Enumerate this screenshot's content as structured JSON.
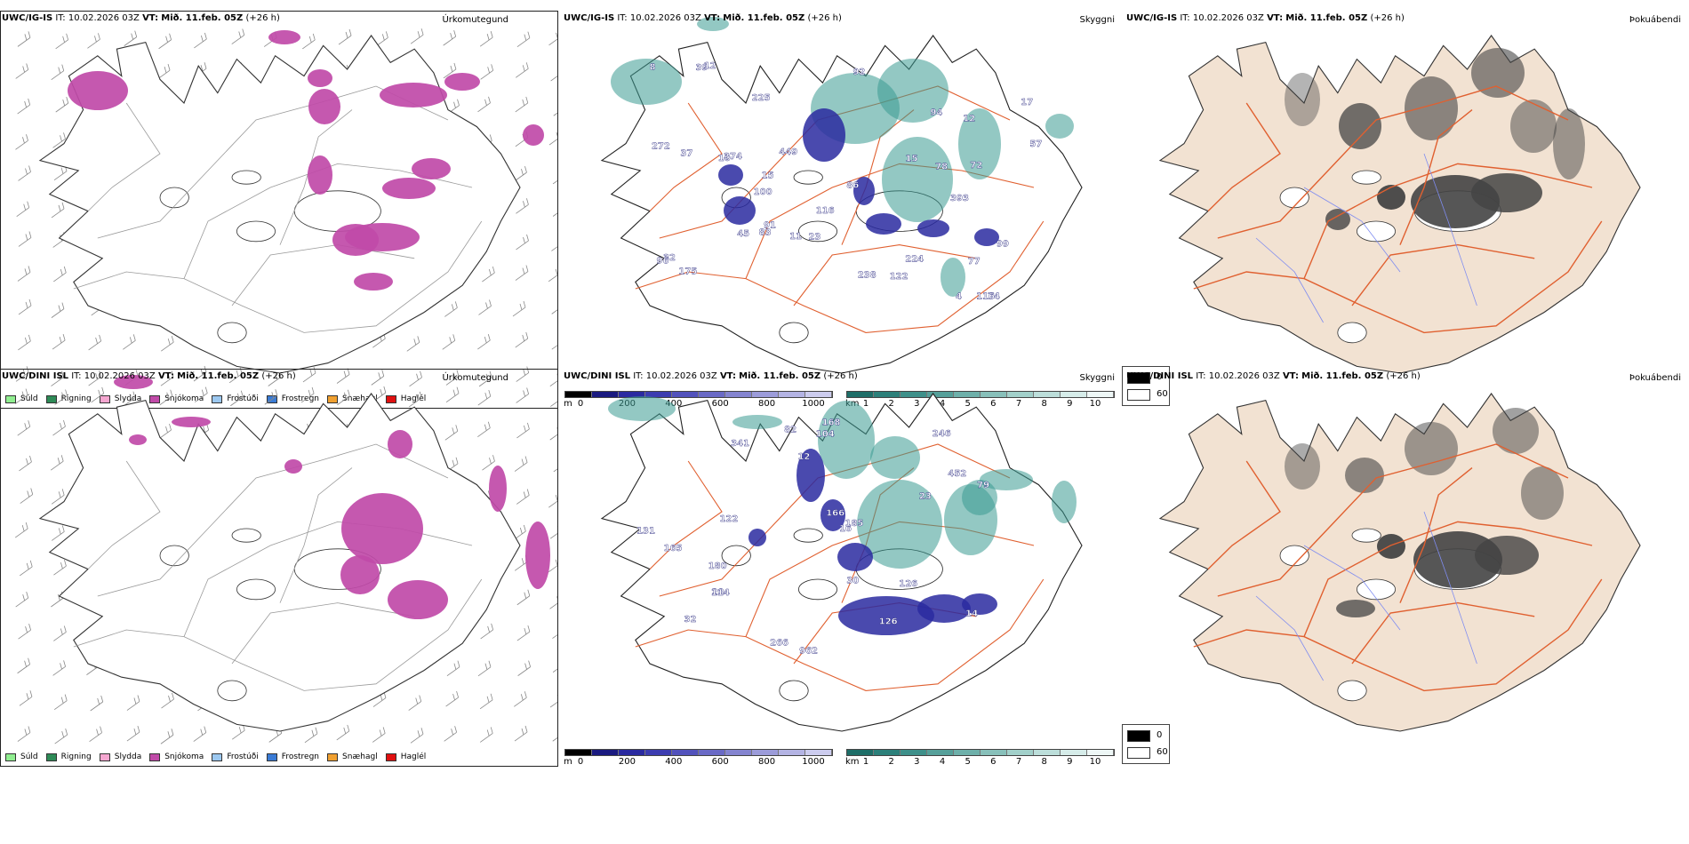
{
  "rows": [
    {
      "model": "UWC/IG-IS",
      "it_label": "IT:",
      "it_value": "10.02.2026 03Z",
      "vt_label": "VT:",
      "vt_value": "Mið. 11.feb. 05Z",
      "offset": "(+26 h)",
      "cloud_labels": [
        "116",
        "10",
        "39",
        "393",
        "74",
        "225",
        "23",
        "100",
        "83",
        "78",
        "72",
        "92",
        "8",
        "4",
        "15",
        "224",
        "86",
        "57",
        "17",
        "449",
        "116",
        "374",
        "122",
        "45",
        "77",
        "15",
        "238",
        "32",
        "12",
        "96",
        "91",
        "11",
        "175",
        "99",
        "94",
        "272",
        "37",
        "12"
      ]
    },
    {
      "model": "UWC/DINI ISL",
      "it_label": "IT:",
      "it_value": "10.02.2026 03Z",
      "vt_label": "VT:",
      "vt_value": "Mið. 11.feb. 05Z",
      "offset": "(+26 h)",
      "cloud_labels": [
        "32",
        "246",
        "341",
        "452",
        "30",
        "122",
        "180",
        "20",
        "79",
        "23",
        "165",
        "168",
        "126",
        "16",
        "962",
        "82",
        "14",
        "131",
        "114",
        "266",
        "126",
        "104",
        "12",
        "185",
        "166"
      ]
    }
  ],
  "panel_titles": {
    "precip": "Úrkomutegund",
    "cloud": "Skyggni",
    "fog": "Þokuábendi"
  },
  "precip_legend": [
    {
      "label": "Súld",
      "color": "#90ee90"
    },
    {
      "label": "Rigning",
      "color": "#2e8b57"
    },
    {
      "label": "Slydda",
      "color": "#f5a6d0"
    },
    {
      "label": "Snjókoma",
      "color": "#c04aa8"
    },
    {
      "label": "Frostúði",
      "color": "#9cc8f0"
    },
    {
      "label": "Frostregn",
      "color": "#3a7bd5"
    },
    {
      "label": "Snæhagl",
      "color": "#f0a030"
    },
    {
      "label": "Haglél",
      "color": "#e01010"
    }
  ],
  "ceiling_scale": {
    "unit": "m",
    "ticks": [
      "0",
      "200",
      "400",
      "600",
      "800",
      "1000"
    ],
    "colors": [
      "#000000",
      "#1a1a80",
      "#2a2aa0",
      "#3c3cb0",
      "#5252bc",
      "#6a6ac6",
      "#8484d0",
      "#9c9cda",
      "#b4b4e4",
      "#ccccee"
    ]
  },
  "visibility_scale": {
    "unit": "km",
    "ticks": [
      "1",
      "2",
      "3",
      "4",
      "5",
      "6",
      "7",
      "8",
      "9",
      "10"
    ],
    "colors": [
      "#1e6e68",
      "#2c807a",
      "#3e908a",
      "#56a09a",
      "#6eb0aa",
      "#88c0ba",
      "#a2d0ca",
      "#bcdeda",
      "#d6ece9",
      "#eef7f6"
    ]
  },
  "fog_legend": {
    "high": "0",
    "low": "60",
    "high_color": "#000000",
    "low_color": "#ffffff"
  },
  "map_colors": {
    "land": "#f2e2d2",
    "roads": "#e06030",
    "coast": "#333333",
    "snow": "#c04aa8",
    "low_cloud": "#2a2aa0",
    "fog_vis": "#3a9a92",
    "shade": "#444444"
  }
}
